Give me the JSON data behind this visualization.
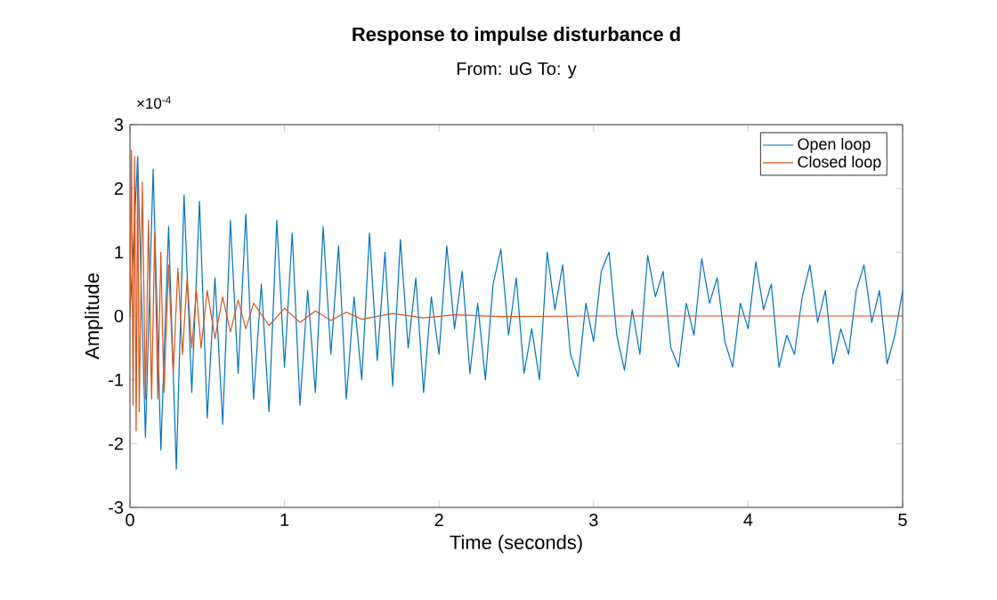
{
  "chart_data": {
    "type": "line",
    "title": "Response to impulse disturbance d",
    "subtitle": "From: uG  To: y",
    "xlabel": "Time (seconds)",
    "ylabel": "Amplitude",
    "annotations": [
      "×10$^{-4}$"
    ],
    "xlim": [
      0,
      5
    ],
    "ylim": [
      -3,
      3
    ],
    "xticks": [
      0,
      1,
      2,
      3,
      4,
      5
    ],
    "yticks": [
      -3,
      -2,
      -1,
      0,
      1,
      2,
      3
    ],
    "grid": false,
    "legend": "top right",
    "series": [
      {
        "name": "Open loop",
        "color": "#0072bd",
        "x": [
          0,
          0.05,
          0.1,
          0.15,
          0.2,
          0.25,
          0.3,
          0.35,
          0.4,
          0.45,
          0.5,
          0.55,
          0.6,
          0.65,
          0.7,
          0.75,
          0.8,
          0.85,
          0.9,
          0.95,
          1.0,
          1.05,
          1.1,
          1.15,
          1.2,
          1.25,
          1.3,
          1.35,
          1.4,
          1.45,
          1.5,
          1.55,
          1.6,
          1.65,
          1.7,
          1.75,
          1.8,
          1.85,
          1.9,
          1.95,
          2.0,
          2.05,
          2.1,
          2.15,
          2.2,
          2.25,
          2.3,
          2.35,
          2.4,
          2.45,
          2.5,
          2.55,
          2.6,
          2.65,
          2.7,
          2.75,
          2.8,
          2.85,
          2.9,
          2.95,
          3.0,
          3.05,
          3.1,
          3.15,
          3.2,
          3.25,
          3.3,
          3.35,
          3.4,
          3.45,
          3.5,
          3.55,
          3.6,
          3.65,
          3.7,
          3.75,
          3.8,
          3.85,
          3.9,
          3.95,
          4.0,
          4.05,
          4.1,
          4.15,
          4.2,
          4.25,
          4.3,
          4.35,
          4.4,
          4.45,
          4.5,
          4.55,
          4.6,
          4.65,
          4.7,
          4.75,
          4.8,
          4.85,
          4.9,
          4.95,
          5.0
        ],
        "values": [
          0,
          2.5,
          -1.9,
          2.3,
          -2.1,
          1.4,
          -2.4,
          1.9,
          -1.2,
          1.8,
          -1.6,
          0.6,
          -1.7,
          1.5,
          -0.9,
          1.6,
          -1.3,
          0.5,
          -1.5,
          1.5,
          -0.8,
          1.3,
          -1.4,
          0.4,
          -1.2,
          1.4,
          -0.6,
          1.1,
          -1.3,
          0.3,
          -1.0,
          1.3,
          -0.7,
          1.0,
          -1.1,
          1.2,
          -0.5,
          0.6,
          -1.2,
          0.3,
          -0.6,
          1.1,
          -0.2,
          0.7,
          -0.9,
          0.2,
          -1.0,
          0.5,
          1.05,
          -0.3,
          0.6,
          -0.9,
          -0.2,
          -1.0,
          1.0,
          0.1,
          0.8,
          -0.6,
          -0.95,
          0.2,
          -0.4,
          0.7,
          1.0,
          -0.3,
          -0.85,
          0.1,
          -0.6,
          0.95,
          0.3,
          0.7,
          -0.5,
          -0.8,
          0.2,
          -0.3,
          0.9,
          0.2,
          0.6,
          -0.4,
          -0.8,
          0.2,
          -0.2,
          0.85,
          0.1,
          0.5,
          -0.8,
          -0.3,
          -0.6,
          0.3,
          0.8,
          -0.1,
          0.4,
          -0.75,
          -0.2,
          -0.6,
          0.4,
          0.8,
          -0.1,
          0.4,
          -0.75,
          -0.3,
          0.4
        ]
      },
      {
        "name": "Closed loop",
        "color": "#d95319",
        "x": [
          0,
          0.01,
          0.02,
          0.03,
          0.04,
          0.05,
          0.06,
          0.08,
          0.1,
          0.12,
          0.14,
          0.16,
          0.18,
          0.2,
          0.22,
          0.25,
          0.28,
          0.31,
          0.34,
          0.37,
          0.4,
          0.43,
          0.46,
          0.5,
          0.55,
          0.6,
          0.65,
          0.7,
          0.75,
          0.8,
          0.9,
          1.0,
          1.1,
          1.2,
          1.3,
          1.4,
          1.5,
          1.7,
          1.9,
          2.1,
          2.4,
          3.0,
          5.0
        ],
        "values": [
          0,
          2.6,
          -1.4,
          2.5,
          -1.8,
          2.3,
          -1.5,
          2.1,
          -1.3,
          1.5,
          -1.3,
          1.3,
          -1.3,
          1.0,
          -1.2,
          0.8,
          -0.9,
          0.75,
          -0.6,
          0.6,
          -0.5,
          0.4,
          -0.5,
          0.4,
          -0.35,
          0.3,
          -0.25,
          0.25,
          -0.2,
          0.2,
          -0.15,
          0.12,
          -0.1,
          0.08,
          -0.07,
          0.06,
          -0.05,
          0.04,
          -0.03,
          0.02,
          -0.01,
          0,
          0
        ]
      }
    ]
  }
}
